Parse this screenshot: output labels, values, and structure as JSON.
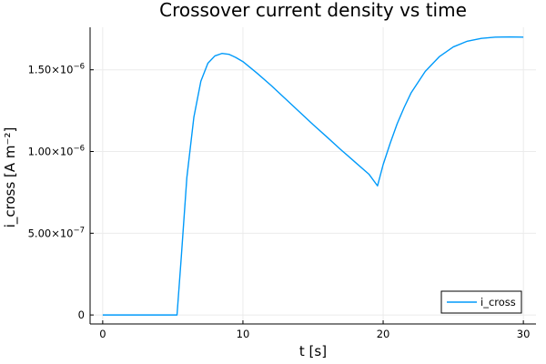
{
  "chart_data": {
    "type": "line",
    "title": "Crossover current density vs time",
    "xlabel": "t [s]",
    "ylabel": "i_cross [A m⁻²]",
    "xlim": [
      -0.9,
      30.9
    ],
    "ylim": [
      -5.5e-08,
      1.76e-06
    ],
    "x_ticks": [
      0,
      10,
      20,
      30
    ],
    "x_tick_labels": [
      "0",
      "10",
      "20",
      "30"
    ],
    "y_ticks": [
      0,
      5e-07,
      1e-06,
      1.5e-06
    ],
    "y_tick_labels": [
      {
        "mantissa": "0",
        "exp": ""
      },
      {
        "mantissa": "5.00×10",
        "exp": "−7"
      },
      {
        "mantissa": "1.00×10",
        "exp": "−6"
      },
      {
        "mantissa": "1.50×10",
        "exp": "−6"
      }
    ],
    "grid": true,
    "legend_position": "bottom-right",
    "series": [
      {
        "name": "i_cross",
        "color": "#009AFA",
        "x": [
          0,
          1,
          2,
          3,
          4,
          5,
          5.3,
          5.6,
          6.0,
          6.5,
          7.0,
          7.5,
          8.0,
          8.5,
          9.0,
          9.5,
          10.0,
          11.0,
          12.0,
          13.0,
          14.0,
          15.0,
          16.0,
          17.0,
          18.0,
          19.0,
          19.6,
          20.0,
          20.5,
          21.0,
          21.5,
          22.0,
          23.0,
          24.0,
          25.0,
          26.0,
          27.0,
          28.0,
          29.0,
          30.0
        ],
        "y": [
          0,
          0,
          0,
          0,
          0,
          0,
          0,
          3.5e-07,
          8.4e-07,
          1.21e-06,
          1.43e-06,
          1.54e-06,
          1.585e-06,
          1.6e-06,
          1.595e-06,
          1.575e-06,
          1.55e-06,
          1.48e-06,
          1.405e-06,
          1.325e-06,
          1.245e-06,
          1.165e-06,
          1.088e-06,
          1.01e-06,
          9.35e-07,
          8.6e-07,
          7.9e-07,
          9.2e-07,
          1.05e-06,
          1.17e-06,
          1.27e-06,
          1.36e-06,
          1.49e-06,
          1.58e-06,
          1.64e-06,
          1.675e-06,
          1.692e-06,
          1.7e-06,
          1.701e-06,
          1.7e-06
        ]
      }
    ]
  }
}
